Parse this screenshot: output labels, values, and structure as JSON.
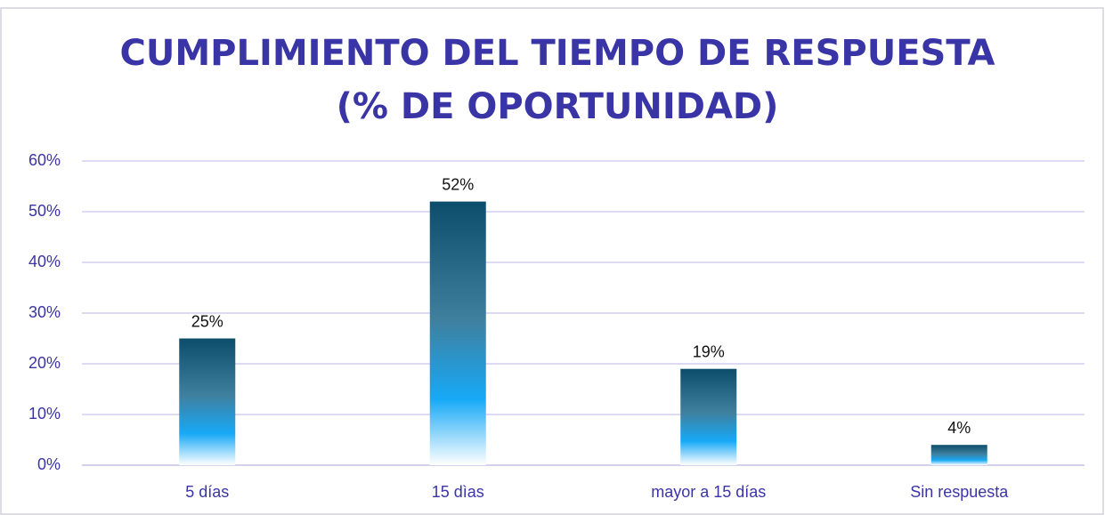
{
  "chart_data": {
    "type": "bar",
    "title": [
      "CUMPLIMIENTO DEL TIEMPO DE RESPUESTA",
      "(% DE OPORTUNIDAD)"
    ],
    "categories": [
      "5 días",
      "15 dìas",
      "mayor a 15 días",
      "Sin respuesta"
    ],
    "values": [
      25,
      52,
      19,
      4
    ],
    "value_labels": [
      "25%",
      "52%",
      "19%",
      "4%"
    ],
    "colors": [
      "#0b4d6b",
      "#3f809f",
      "#17a9f7",
      "#ffffff"
    ],
    "ylim": [
      0,
      60
    ],
    "yticks": [
      {
        "value": 0,
        "label": "0%"
      },
      {
        "value": 10,
        "label": "10%"
      },
      {
        "value": 20,
        "label": "20%"
      },
      {
        "value": 30,
        "label": "30%"
      },
      {
        "value": 40,
        "label": "40%"
      },
      {
        "value": 50,
        "label": "50%"
      },
      {
        "value": 60,
        "label": "60%"
      }
    ],
    "grid": true
  }
}
